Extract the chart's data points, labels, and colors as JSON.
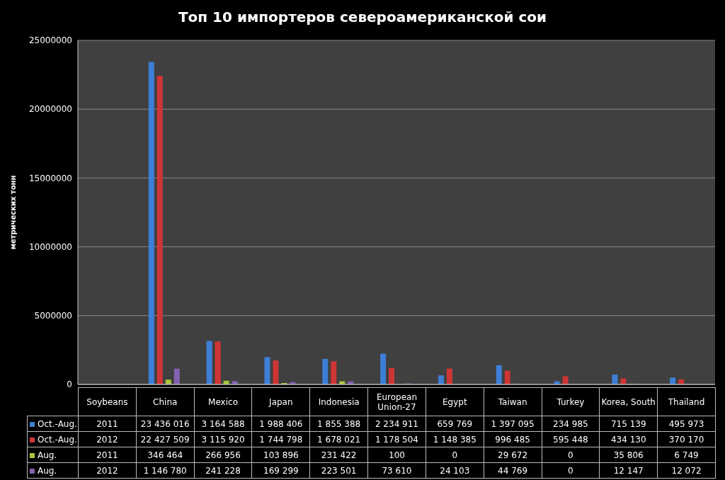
{
  "chart_data": {
    "type": "bar",
    "title": "Топ 10 импортеров североамериканской сои",
    "ylabel": "метрических тонн",
    "categories": [
      "Soybeans",
      "China",
      "Mexico",
      "Japan",
      "Indonesia",
      "European Union-27",
      "Egypt",
      "Taiwan",
      "Turkey",
      "Korea, South",
      "Thailand"
    ],
    "series": [
      {
        "name": "Oct.-Aug.",
        "color": "#3d7fd6",
        "values": [
          2011,
          23436016,
          3164588,
          1988406,
          1855388,
          2234911,
          659769,
          1397095,
          234985,
          715139,
          495973
        ],
        "value_labels": [
          "2011",
          "23 436 016",
          "3 164 588",
          "1 988 406",
          "1 855 388",
          "2 234 911",
          "659 769",
          "1 397 095",
          "234 985",
          "715 139",
          "495 973"
        ]
      },
      {
        "name": "Oct.-Aug.",
        "color": "#cf3535",
        "values": [
          2012,
          22427509,
          3115920,
          1744798,
          1678021,
          1178504,
          1148385,
          996485,
          595448,
          434130,
          370170
        ],
        "value_labels": [
          "2012",
          "22 427 509",
          "3 115 920",
          "1 744 798",
          "1 678 021",
          "1 178 504",
          "1 148 385",
          "996 485",
          "595 448",
          "434 130",
          "370 170"
        ]
      },
      {
        "name": "Aug.",
        "color": "#a8c83c",
        "values": [
          2011,
          346464,
          266956,
          103896,
          231422,
          100,
          0,
          29672,
          0,
          35806,
          6749
        ],
        "value_labels": [
          "2011",
          "346 464",
          "266 956",
          "103 896",
          "231 422",
          "100",
          "0",
          "29 672",
          "0",
          "35 806",
          "6 749"
        ]
      },
      {
        "name": "Aug.",
        "color": "#8461b0",
        "values": [
          2012,
          1146780,
          241228,
          169299,
          223501,
          73610,
          24103,
          44769,
          0,
          12147,
          12072
        ],
        "value_labels": [
          "2012",
          "1 146 780",
          "241 228",
          "169 299",
          "223 501",
          "73 610",
          "24 103",
          "44 769",
          "0",
          "12 147",
          "12 072"
        ]
      }
    ],
    "ylim": [
      0,
      25000000
    ],
    "yticks": [
      0,
      5000000,
      10000000,
      15000000,
      20000000,
      25000000
    ],
    "grid": "y",
    "legend": "bottom"
  }
}
